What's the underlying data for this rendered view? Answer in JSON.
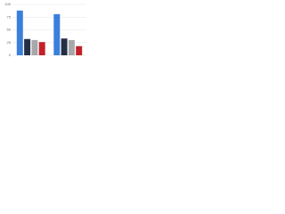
{
  "chart_data": {
    "type": "bar",
    "categories": [
      null,
      null
    ],
    "series": [
      {
        "color": "#3a7fdc",
        "values": [
          88,
          81
        ]
      },
      {
        "color": "#232f45",
        "values": [
          32,
          33
        ]
      },
      {
        "color": "#a6a8ab",
        "values": [
          30,
          30
        ]
      },
      {
        "color": "#c4202a",
        "values": [
          26,
          18
        ]
      }
    ],
    "ylim": [
      0,
      100
    ],
    "yticks": [
      0,
      25,
      50,
      75,
      100
    ],
    "grid": true
  }
}
